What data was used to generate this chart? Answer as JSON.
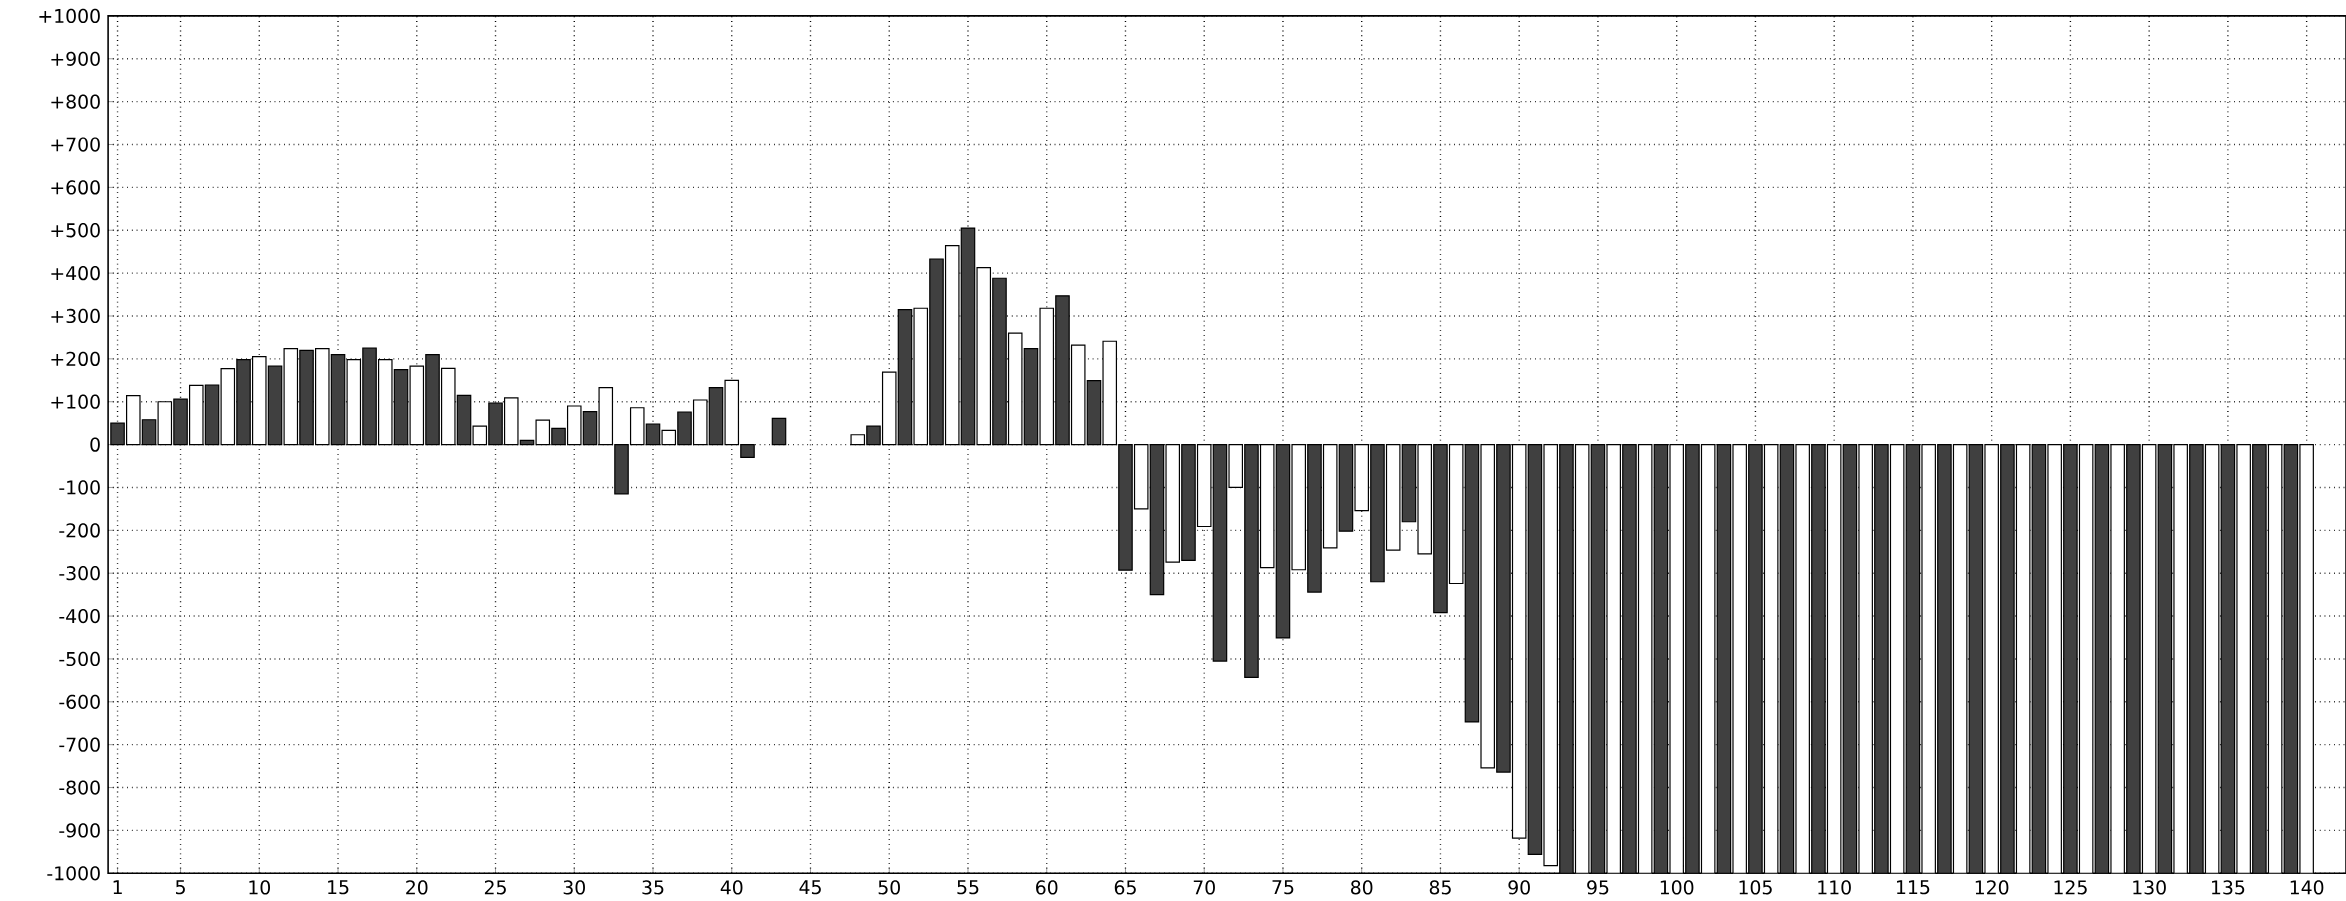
{
  "chart_data": {
    "type": "bar",
    "xlim": [
      0.4,
      142.5
    ],
    "ylim": [
      -1000,
      1000
    ],
    "xticks": [
      1,
      5,
      10,
      15,
      20,
      25,
      30,
      35,
      40,
      45,
      50,
      55,
      60,
      65,
      70,
      75,
      80,
      85,
      90,
      95,
      100,
      105,
      110,
      115,
      120,
      125,
      130,
      135,
      140
    ],
    "yticks": [
      -1000,
      -900,
      -800,
      -700,
      -600,
      -500,
      -400,
      -300,
      -200,
      -100,
      0,
      {
        "value": 100,
        "label": "+100"
      },
      {
        "value": 200,
        "label": "+200"
      },
      {
        "value": 300,
        "label": "+300"
      },
      {
        "value": 400,
        "label": "+400"
      },
      {
        "value": 500,
        "label": "+500"
      },
      {
        "value": 600,
        "label": "+600"
      },
      {
        "value": 700,
        "label": "+700"
      },
      {
        "value": 800,
        "label": "+800"
      },
      {
        "value": 900,
        "label": "+900"
      },
      {
        "value": 1000,
        "label": "+1000"
      }
    ],
    "grid": true,
    "series": [
      {
        "color": "#404040",
        "x": [
          1,
          3,
          5,
          7,
          9,
          11,
          13,
          15,
          17,
          19,
          21,
          23,
          25,
          27,
          29,
          31,
          33,
          35,
          37,
          39,
          41,
          43,
          45,
          47,
          49,
          51,
          53,
          55,
          57,
          59,
          61,
          63,
          65,
          67,
          69,
          71,
          73,
          75,
          77,
          79,
          81,
          83,
          85,
          87,
          89,
          91,
          93,
          95,
          97,
          99,
          101,
          103,
          105,
          107,
          109,
          111,
          113,
          115,
          117,
          119,
          121,
          123,
          125,
          127,
          129,
          131,
          133,
          135,
          137,
          139
        ],
        "values": [
          50,
          58,
          106,
          139,
          198,
          183,
          220,
          210,
          225,
          175,
          210,
          115,
          97,
          10,
          38,
          77,
          -115,
          48,
          76,
          133,
          -30,
          61,
          null,
          null,
          43,
          315,
          433,
          505,
          388,
          224,
          347,
          149,
          -293,
          -350,
          -270,
          -505,
          -543,
          -451,
          -344,
          -202,
          -320,
          -180,
          -392,
          -647,
          -764,
          -956,
          -1000,
          -1000,
          -1000,
          -1000,
          -1000,
          -1000,
          -1000,
          -1000,
          -1000,
          -1000,
          -1000,
          -1000,
          -1000,
          -1000,
          -1000,
          -1000,
          -1000,
          -1000,
          -1000,
          -1000,
          -1000,
          -1000,
          -1000,
          -1000
        ]
      },
      {
        "color": "#ffffff",
        "x": [
          2,
          4,
          6,
          8,
          10,
          12,
          14,
          16,
          18,
          20,
          22,
          24,
          26,
          28,
          30,
          32,
          34,
          36,
          38,
          40,
          42,
          44,
          46,
          48,
          50,
          52,
          54,
          56,
          58,
          60,
          62,
          64,
          66,
          68,
          70,
          72,
          74,
          76,
          78,
          80,
          82,
          84,
          86,
          88,
          90,
          92,
          94,
          96,
          98,
          100,
          102,
          104,
          106,
          108,
          110,
          112,
          114,
          116,
          118,
          120,
          122,
          124,
          126,
          128,
          130,
          132,
          134,
          136,
          138,
          140
        ],
        "values": [
          114,
          100,
          138,
          177,
          205,
          224,
          224,
          198,
          198,
          183,
          178,
          43,
          109,
          57,
          90,
          133,
          86,
          33,
          104,
          150,
          null,
          null,
          null,
          23,
          169,
          318,
          464,
          413,
          260,
          318,
          232,
          241,
          -150,
          -274,
          -191,
          -100,
          -287,
          -292,
          -241,
          -154,
          -246,
          -255,
          -324,
          -754,
          -918,
          -982,
          -1000,
          -1000,
          -1000,
          -1000,
          -1000,
          -1000,
          -1000,
          -1000,
          -1000,
          -1000,
          -1000,
          -1000,
          -1000,
          -1000,
          -1000,
          -1000,
          -1000,
          -1000,
          -1000,
          -1000,
          -1000,
          -1000,
          -1000,
          -1000
        ]
      }
    ]
  }
}
